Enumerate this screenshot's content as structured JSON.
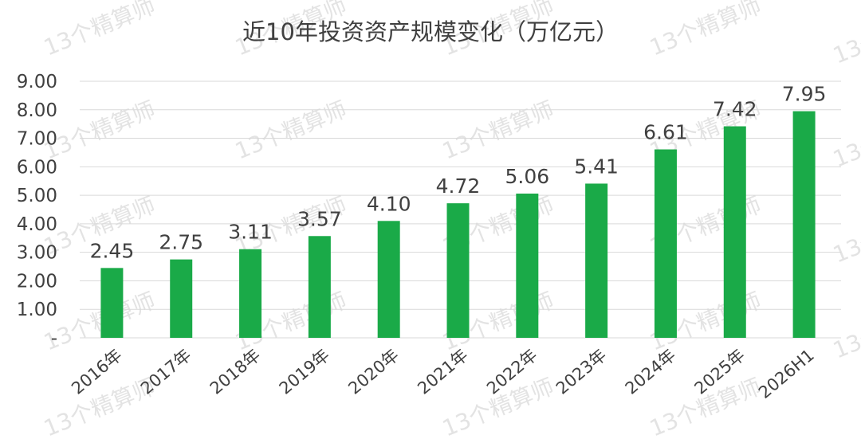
{
  "chart_data": {
    "type": "bar",
    "title": "近10年投资资产规模变化（万亿元）",
    "categories": [
      "2016年",
      "2017年",
      "2018年",
      "2019年",
      "2020年",
      "2021年",
      "2022年",
      "2023年",
      "2024年",
      "2025年",
      "2026H1"
    ],
    "values": [
      2.45,
      2.75,
      3.11,
      3.57,
      4.1,
      4.72,
      5.06,
      5.41,
      6.61,
      7.42,
      7.95
    ],
    "value_labels": [
      "2.45",
      "2.75",
      "3.11",
      "3.57",
      "4.10",
      "4.72",
      "5.06",
      "5.41",
      "6.61",
      "7.42",
      "7.95"
    ],
    "ylim": [
      0,
      9
    ],
    "yticks": [
      "-",
      "1.00",
      "2.00",
      "3.00",
      "4.00",
      "5.00",
      "6.00",
      "7.00",
      "8.00",
      "9.00"
    ],
    "xlabel": "",
    "ylabel": "",
    "grid": true,
    "legend": "none",
    "bar_color": "#1aaa48"
  },
  "watermark": "13个精算师"
}
